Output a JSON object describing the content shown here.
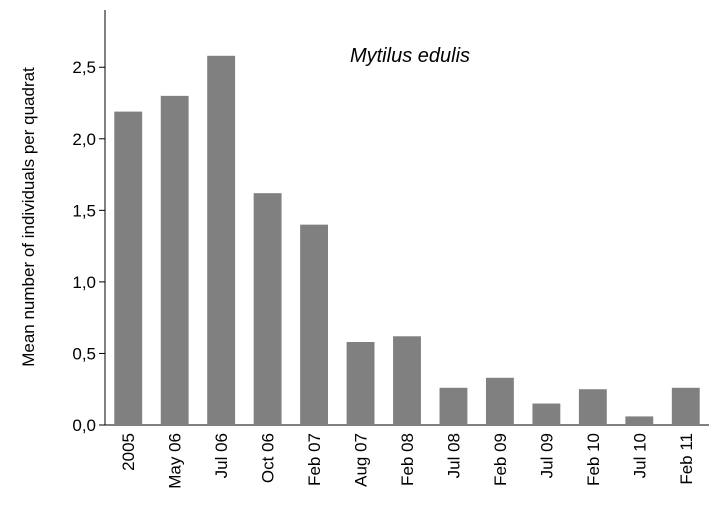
{
  "chart_data": {
    "type": "bar",
    "title": "Mytilus edulis",
    "y_label": "Mean number of individuals per quadrat",
    "categories": [
      "2005",
      "May 06",
      "Jul 06",
      "Oct 06",
      "Feb 07",
      "Aug 07",
      "Feb 08",
      "Jul 08",
      "Feb 09",
      "Jul 09",
      "Feb 10",
      "Jul 10",
      "Feb 11"
    ],
    "values": [
      2.19,
      2.3,
      2.58,
      1.62,
      1.4,
      0.58,
      0.62,
      0.26,
      0.33,
      0.15,
      0.25,
      0.06,
      0.26
    ],
    "color": "#808080",
    "ylim": [
      0,
      2.9
    ],
    "yticks": [
      {
        "value": 0,
        "label": "0,0"
      },
      {
        "value": 0.5,
        "label": "0,5"
      },
      {
        "value": 1,
        "label": "1,0"
      },
      {
        "value": 1.5,
        "label": "1,5"
      },
      {
        "value": 2,
        "label": "2,0"
      },
      {
        "value": 2.5,
        "label": "2,5"
      }
    ]
  }
}
